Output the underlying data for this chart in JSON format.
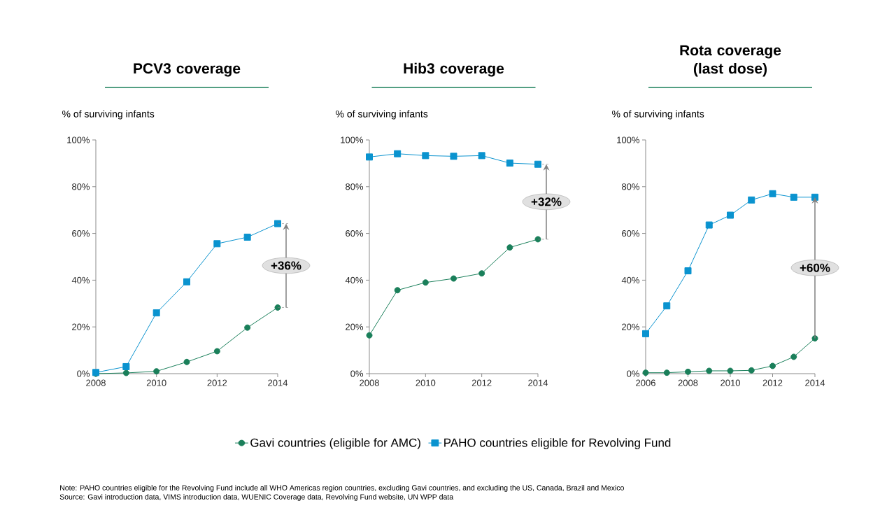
{
  "chart_data": [
    {
      "type": "line",
      "title": "PCV3 coverage",
      "ylabel": "% of surviving infants",
      "x": [
        2008,
        2009,
        2010,
        2011,
        2012,
        2013,
        2014
      ],
      "series": [
        {
          "color": "#1a7f5a",
          "marker": "circle",
          "values": [
            0,
            0.3,
            1,
            5,
            9.6,
            19.7,
            28.3
          ]
        },
        {
          "color": "#0a93cf",
          "marker": "square",
          "values": [
            0.5,
            3,
            26,
            39.3,
            55.6,
            58.4,
            64.2
          ]
        }
      ],
      "xlim": [
        2008,
        2014
      ],
      "xticks": [
        2008,
        2010,
        2012,
        2014
      ],
      "ylim": [
        0,
        100
      ],
      "yticks": [
        {
          "value": 0,
          "label": "0%"
        },
        {
          "value": 20,
          "label": "20%"
        },
        {
          "value": 40,
          "label": "40%"
        },
        {
          "value": 60,
          "label": "60%"
        },
        {
          "value": 80,
          "label": "80%"
        },
        {
          "value": 100,
          "label": "100%"
        }
      ],
      "line_style": "solid",
      "grid": false,
      "legend": false,
      "annotations": [
        "+36%",
        "Note: PAHO countries eligible for the Revolving Fund include all WHO Americas region countries, excluding Gavi countries, and excluding the US, Canada, Brazil and Mexico",
        "Source: Gavi introduction data, VIMS introduction data, WUENIC Coverage data, Revolving Fund website, UN WPP data"
      ]
    },
    {
      "type": "line",
      "title": "Hib3 coverage",
      "ylabel": "% of surviving infants",
      "x": [
        2008,
        2009,
        2010,
        2011,
        2012,
        2013,
        2014
      ],
      "series": [
        {
          "name": "Gavi countries (eligible for AMC)",
          "color": "#1a7f5a",
          "marker": "circle",
          "values": [
            16.4,
            35.7,
            39.0,
            40.7,
            42.9,
            54.0,
            57.5
          ]
        },
        {
          "name": "PAHO countries eligible for Revolving Fund",
          "color": "#0a93cf",
          "marker": "square",
          "values": [
            92.7,
            94.1,
            93.3,
            93.0,
            93.3,
            90.1,
            89.6
          ]
        }
      ],
      "xlim": [
        2008,
        2014
      ],
      "xticks": [
        2008,
        2010,
        2012,
        2014
      ],
      "ylim": [
        0,
        100
      ],
      "yticks": [
        {
          "value": 0,
          "label": "0%"
        },
        {
          "value": 20,
          "label": "20%"
        },
        {
          "value": 40,
          "label": "40%"
        },
        {
          "value": 60,
          "label": "60%"
        },
        {
          "value": 80,
          "label": "80%"
        },
        {
          "value": 100,
          "label": "100%"
        }
      ],
      "line_style": "solid",
      "grid": false,
      "legend": "bottom",
      "annotations": [
        "+32%"
      ]
    },
    {
      "type": "line",
      "title": "Rota coverage (last dose)",
      "ylabel": "% of surviving infants",
      "x": [
        2006,
        2007,
        2008,
        2009,
        2010,
        2011,
        2012,
        2013,
        2014
      ],
      "series": [
        {
          "color": "#1a7f5a",
          "marker": "circle",
          "values": [
            0.4,
            0.4,
            0.8,
            1.2,
            1.2,
            1.4,
            3.3,
            7.2,
            15.1
          ]
        },
        {
          "color": "#0a93cf",
          "marker": "square",
          "values": [
            17.1,
            29.0,
            44.0,
            63.6,
            67.8,
            74.3,
            77.0,
            75.5,
            75.5
          ]
        }
      ],
      "xlim": [
        2006,
        2014
      ],
      "xticks": [
        2006,
        2008,
        2010,
        2012,
        2014
      ],
      "ylim": [
        0,
        100
      ],
      "yticks": [
        {
          "value": 0,
          "label": "0%"
        },
        {
          "value": 20,
          "label": "20%"
        },
        {
          "value": 40,
          "label": "40%"
        },
        {
          "value": 60,
          "label": "60%"
        },
        {
          "value": 80,
          "label": "80%"
        },
        {
          "value": 100,
          "label": "100%"
        }
      ],
      "line_style": "solid",
      "grid": false,
      "legend": false,
      "annotations": [
        "+60%"
      ]
    }
  ]
}
